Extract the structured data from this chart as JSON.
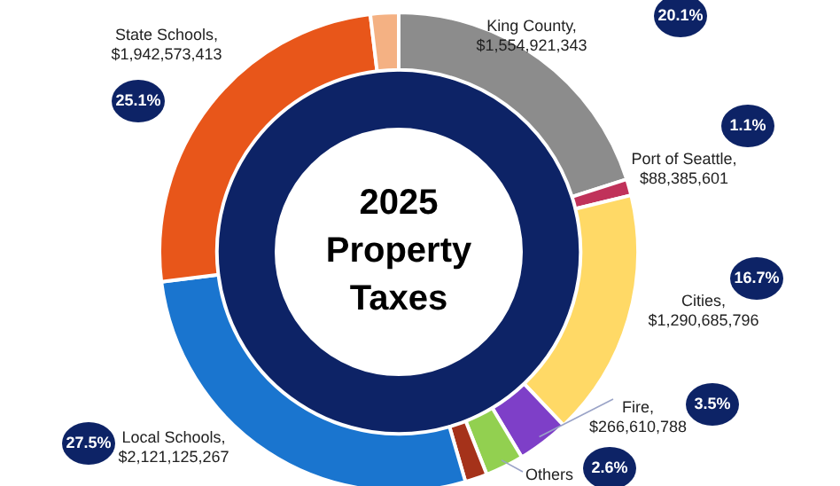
{
  "chart_data": {
    "type": "donut",
    "title": "2025 Property Taxes",
    "categories": [
      "King County,\n$1,554,921,343",
      "Port of Seattle,\n$88,385,601",
      "Cities,\n$1,290,685,796",
      "Fire,\n$266,610,788",
      "Others",
      null,
      "Local Schools,\n$2,121,125,267",
      "State Schools,\n$1,942,573,413",
      null
    ],
    "series": [
      {
        "values": [
          20.1,
          1.1,
          16.7,
          3.5,
          2.6,
          1.5,
          27.5,
          25.1,
          1.9
        ],
        "colors": [
          "#8c8c8c",
          "#c0325a",
          "#ffd966",
          "#7e3fc8",
          "#92d050",
          "#a5321a",
          "#1a75cf",
          "#e8561a",
          "#f4b183"
        ],
        "value_labels": [
          "20.1%",
          "1.1%",
          "16.7%",
          "3.5%",
          "2.6%",
          null,
          "27.5%",
          "25.1%",
          null
        ]
      }
    ],
    "legend": false
  }
}
